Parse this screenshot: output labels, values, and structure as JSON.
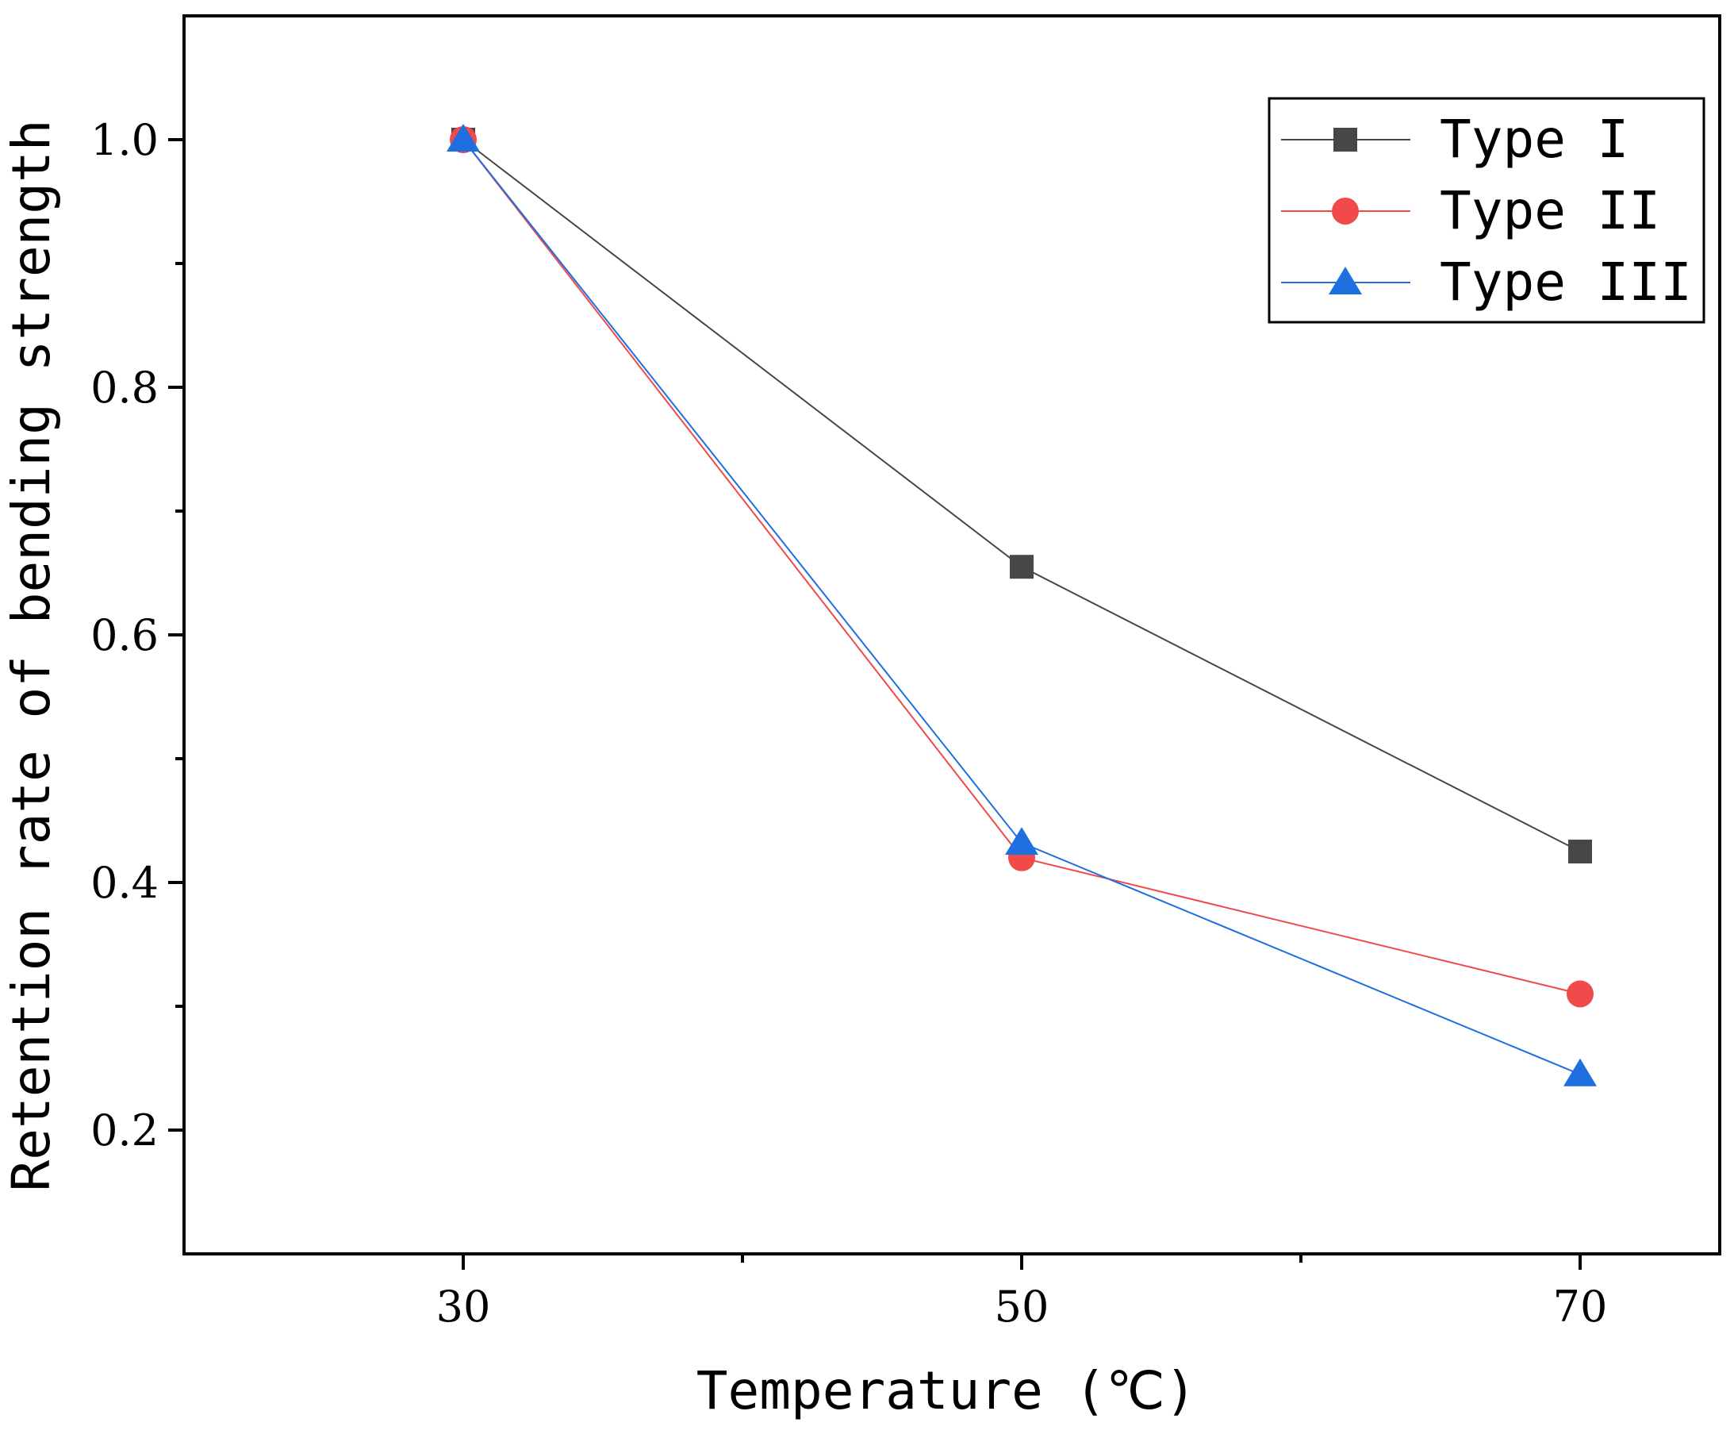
{
  "chart_data": {
    "type": "line",
    "title": "",
    "xlabel": "Temperature (℃)",
    "ylabel": "Retention rate of bending strength",
    "x": [
      30,
      50,
      70
    ],
    "xlim": [
      20,
      75
    ],
    "ylim": [
      0.1,
      1.1
    ],
    "xticks": [
      30,
      50,
      70
    ],
    "xtick_labels": [
      "30",
      "50",
      "70"
    ],
    "xminor_ticks": [
      40,
      60
    ],
    "yticks": [
      0.2,
      0.4,
      0.6,
      0.8,
      1.0
    ],
    "ytick_labels": [
      "0.2",
      "0.4",
      "0.6",
      "0.8",
      "1.0"
    ],
    "yminor_ticks": [
      0.3,
      0.5,
      0.7,
      0.9
    ],
    "grid": false,
    "legend_position": "top-right",
    "series": [
      {
        "name": "Type I",
        "marker": "square",
        "color": "#474747",
        "values": [
          1.0,
          0.655,
          0.425
        ]
      },
      {
        "name": "Type II",
        "marker": "circle",
        "color": "#f04a4a",
        "values": [
          1.0,
          0.42,
          0.31
        ]
      },
      {
        "name": "Type III",
        "marker": "triangle",
        "color": "#1f6fe0",
        "values": [
          1.0,
          0.432,
          0.245
        ]
      }
    ]
  }
}
